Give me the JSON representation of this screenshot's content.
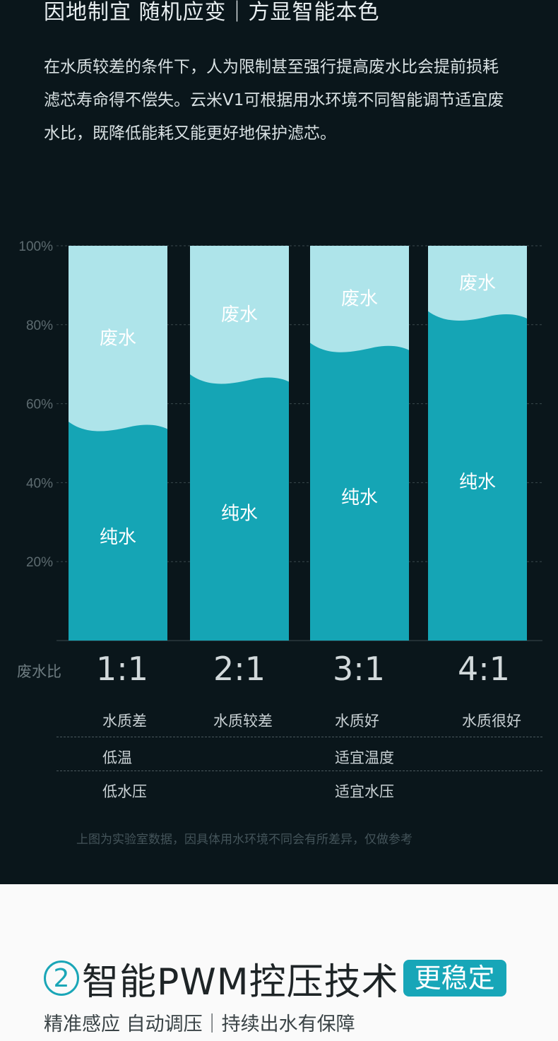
{
  "headline": "因地制宜 随机应变｜方显智能本色",
  "intro": "在水质较差的条件下，人为限制甚至强行提高废水比会提前损耗滤芯寿命得不偿失。云米V1可根据用水环境不同智能调节适宜废水比，既降低能耗又能更好地保护滤芯。",
  "chart_data": {
    "type": "bar",
    "stacked": true,
    "categories": [
      "1:1",
      "2:1",
      "3:1",
      "4:1"
    ],
    "series": [
      {
        "name": "纯水",
        "values": [
          54,
          66,
          74,
          82
        ]
      },
      {
        "name": "废水",
        "values": [
          46,
          34,
          26,
          18
        ]
      }
    ],
    "y_ticks": [
      "100%",
      "80%",
      "60%",
      "40%",
      "20%"
    ],
    "ylim": [
      0,
      100
    ],
    "grid": true,
    "colors": {
      "pure": "#15a5b5",
      "waste": "#aee4ea"
    }
  },
  "ratio_axis_label": "废水比",
  "ratios": [
    "1:1",
    "2:1",
    "3:1",
    "4:1"
  ],
  "conditions": {
    "quality": [
      "水质差",
      "水质较差",
      "水质好",
      "水质很好"
    ],
    "temperature": [
      "低温",
      "适宜温度"
    ],
    "pressure": [
      "低水压",
      "适宜水压"
    ]
  },
  "note": "上图为实验室数据，因具体用水环境不同会有所差异，仅做参考",
  "section2": {
    "number": "2",
    "title": "智能PWM控压技术",
    "badge": "更稳定",
    "subtitle": "精准感应 自动调压｜持续出水有保障"
  }
}
